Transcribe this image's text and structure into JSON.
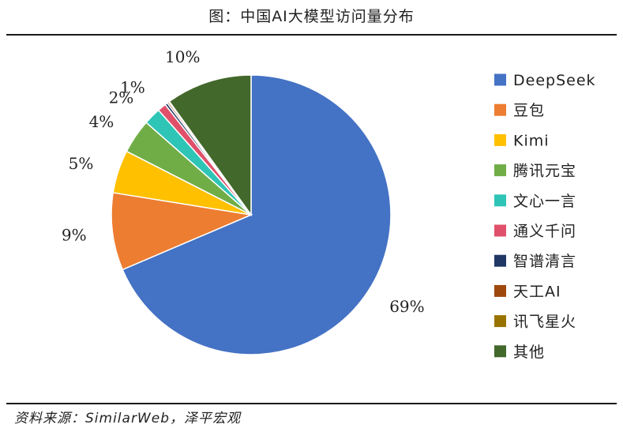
{
  "title": "图：中国AI大模型访问量分布",
  "source_note": "资料来源：SimilarWeb，泽平宏观",
  "chart_data": {
    "type": "pie",
    "unit": "%",
    "legend_position": "right",
    "slices": [
      {
        "name": "DeepSeek",
        "value": 69,
        "label": "69%",
        "color": "#4472C4"
      },
      {
        "name": "豆包",
        "value": 9,
        "label": "9%",
        "color": "#ED7D31"
      },
      {
        "name": "Kimi",
        "value": 5,
        "label": "5%",
        "color": "#FFC000"
      },
      {
        "name": "腾讯元宝",
        "value": 4,
        "label": "4%",
        "color": "#70AD47"
      },
      {
        "name": "文心一言",
        "value": 2,
        "label": "2%",
        "color": "#2EC4B6"
      },
      {
        "name": "通义千问",
        "value": 1,
        "label": "1%",
        "color": "#E0506A"
      },
      {
        "name": "智谱清言",
        "value": 0.3,
        "label": "",
        "color": "#203864"
      },
      {
        "name": "天工AI",
        "value": 0.2,
        "label": "",
        "color": "#9E480E"
      },
      {
        "name": "讯飞星火",
        "value": 0.1,
        "label": "",
        "color": "#997300"
      },
      {
        "name": "其他",
        "value": 10,
        "label": "10%",
        "color": "#43682B"
      }
    ]
  }
}
